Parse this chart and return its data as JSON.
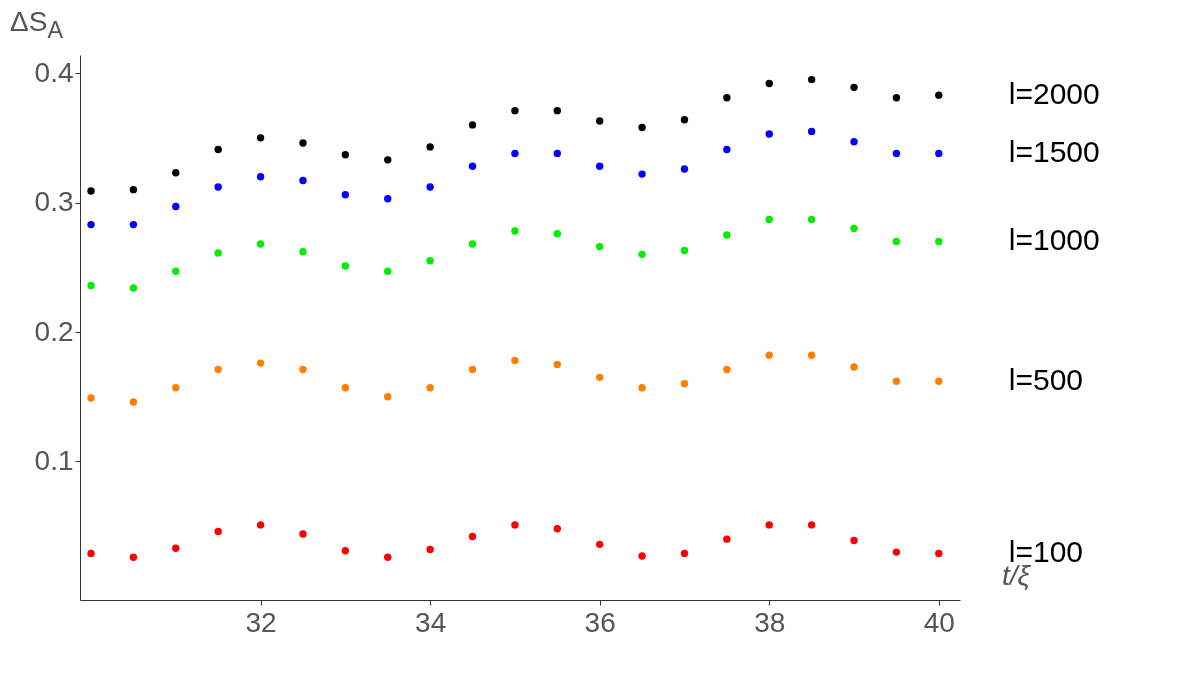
{
  "chart_data": {
    "type": "scatter",
    "ylabel": "ΔS$_{A}$",
    "xlabel": "t/ξ",
    "marker": "circle",
    "grid": false,
    "xlim": [
      29.87,
      40.25
    ],
    "ylim": [
      -0.007,
      0.414
    ],
    "xticks": [
      32,
      34,
      36,
      38,
      40
    ],
    "yticks": [
      0.1,
      0.2,
      0.3,
      0.4
    ],
    "x": [
      30,
      30.5,
      31,
      31.5,
      32,
      32.5,
      33,
      33.5,
      34,
      34.5,
      35,
      35.5,
      36,
      36.5,
      37,
      37.5,
      38,
      38.5,
      39,
      39.5,
      40
    ],
    "series": [
      {
        "name": "l=2000",
        "color": "#000000",
        "values": [
          0.309,
          0.31,
          0.323,
          0.341,
          0.35,
          0.346,
          0.337,
          0.333,
          0.343,
          0.36,
          0.371,
          0.371,
          0.363,
          0.358,
          0.364,
          0.381,
          0.392,
          0.395,
          0.389,
          0.381,
          0.383
        ]
      },
      {
        "name": "l=1500",
        "color": "#0000ff",
        "values": [
          0.283,
          0.283,
          0.297,
          0.312,
          0.32,
          0.317,
          0.306,
          0.303,
          0.312,
          0.328,
          0.338,
          0.338,
          0.328,
          0.322,
          0.326,
          0.341,
          0.353,
          0.355,
          0.347,
          0.338,
          0.338
        ]
      },
      {
        "name": "l=1000",
        "color": "#00ee00",
        "values": [
          0.236,
          0.234,
          0.247,
          0.261,
          0.268,
          0.262,
          0.251,
          0.247,
          0.255,
          0.268,
          0.278,
          0.276,
          0.266,
          0.26,
          0.263,
          0.275,
          0.287,
          0.287,
          0.28,
          0.27,
          0.27
        ]
      },
      {
        "name": "l=500",
        "color": "#ff8000",
        "values": [
          0.149,
          0.146,
          0.157,
          0.171,
          0.176,
          0.171,
          0.157,
          0.15,
          0.157,
          0.171,
          0.178,
          0.175,
          0.165,
          0.157,
          0.16,
          0.171,
          0.182,
          0.182,
          0.173,
          0.162,
          0.162
        ]
      },
      {
        "name": "l=100",
        "color": "#ff0000",
        "values": [
          0.029,
          0.026,
          0.033,
          0.046,
          0.051,
          0.044,
          0.031,
          0.026,
          0.032,
          0.042,
          0.051,
          0.048,
          0.036,
          0.027,
          0.029,
          0.04,
          0.051,
          0.051,
          0.039,
          0.03,
          0.029
        ]
      }
    ]
  }
}
